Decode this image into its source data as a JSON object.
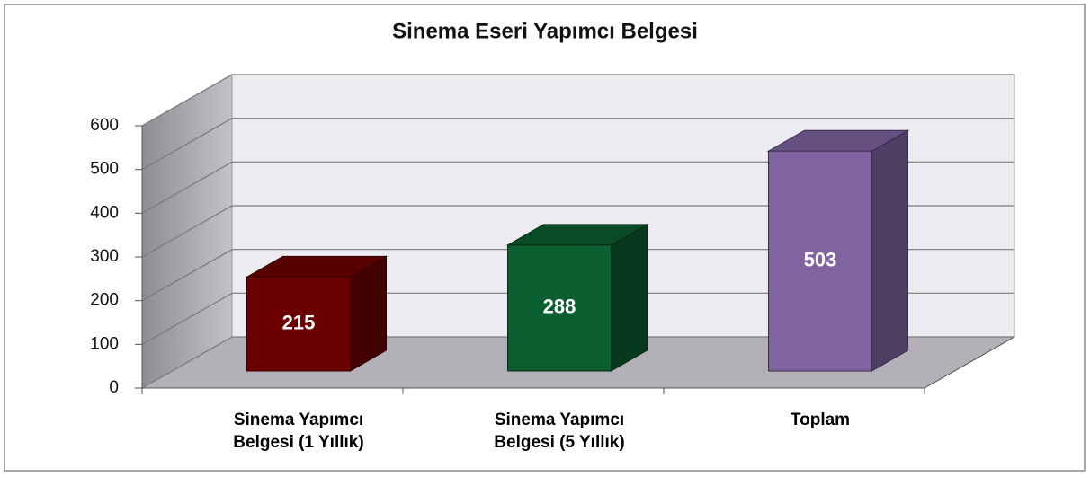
{
  "chart_data": {
    "type": "bar3d",
    "title": "Sinema Eseri Yapımcı Belgesi",
    "categories": [
      "Sinema Yapımcı Belgesi (1 Yıllık)",
      "Sinema Yapımcı Belgesi (5 Yıllık)",
      "Toplam"
    ],
    "values": [
      215,
      288,
      503
    ],
    "colors": [
      "#6b0000",
      "#0b5e2f",
      "#8064a2"
    ],
    "ylim": [
      0,
      600
    ],
    "yticks": [
      0,
      100,
      200,
      300,
      400,
      500,
      600
    ],
    "grid": true
  }
}
